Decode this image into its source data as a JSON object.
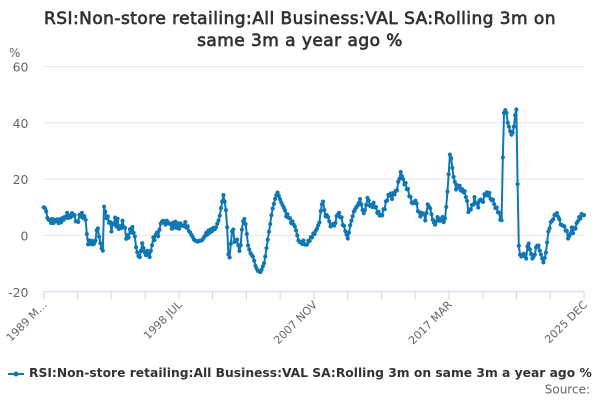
{
  "chart": {
    "title": "RSI:Non-store retailing:All Business:VAL SA:Rolling 3m on same 3m a year ago %",
    "title_lines": [
      "RSI:Non-store retailing:All Business:VAL SA:Rolling 3m on",
      "same 3m a year ago %"
    ],
    "y_axis": {
      "unit_label": "%",
      "tick_labels": [
        "60",
        "40",
        "20",
        "0",
        "-20"
      ],
      "min": -20,
      "max": 60
    },
    "x_axis": {
      "labels": [
        "1989 M…",
        "1998 JUL",
        "2007 NOV",
        "2017 MAR",
        "2025 DEC"
      ],
      "minor_tick_count": 17
    },
    "legend": {
      "label": "RSI:Non-store retailing:All Business:VAL SA:Rolling 3m on same 3m a year ago %"
    },
    "source_label": "Source:",
    "colors": {
      "series": "#1077b5",
      "grid": "#e6e6e6",
      "axis": "#ccd6eb",
      "title_text": "#333333",
      "tick_text": "#666666",
      "legend_text": "#333333",
      "source_text": "#666666",
      "background": "#ffffff"
    }
  },
  "chart_data": {
    "type": "line",
    "title": "RSI:Non-store retailing:All Business:VAL SA:Rolling 3m on same 3m a year ago %",
    "xlabel": "",
    "ylabel": "%",
    "ylim": [
      -20,
      60
    ],
    "y_ticks": [
      60,
      40,
      20,
      0,
      -20
    ],
    "x_tick_labels": [
      "1989 M…",
      "1998 JUL",
      "2007 NOV",
      "2017 MAR",
      "2025 DEC"
    ],
    "grid": "horizontal",
    "markers": true,
    "legend_position": "bottom",
    "series": [
      {
        "name": "RSI:Non-store retailing:All Business:VAL SA:Rolling 3m on same 3m a year ago %",
        "values": [
          10,
          9.6,
          8.5,
          6.2,
          5.5,
          5.6,
          4.4,
          5.8,
          4.4,
          5.5,
          5.1,
          5.7,
          4.4,
          5.7,
          4.6,
          6.1,
          5.5,
          6.6,
          6.2,
          8.0,
          6.2,
          7.0,
          6.5,
          7.9,
          7.1,
          7.2,
          5.0,
          5.0,
          4.8,
          7.3,
          6.7,
          8.0,
          6.2,
          6.8,
          5.5,
          0.5,
          -3.2,
          -1.8,
          -3.0,
          -1.9,
          -3.2,
          -2.9,
          -1.9,
          1.8,
          2.5,
          -0.5,
          -2.8,
          -4.6,
          -5.4,
          10.2,
          8.4,
          6.1,
          6.7,
          4.5,
          4.7,
          1.4,
          4.2,
          4.0,
          6.3,
          3.2,
          5.9,
          2.3,
          3.3,
          2.6,
          5.2,
          3.0,
          2.7,
          -1.2,
          -0.0,
          -0.8,
          2.2,
          1.0,
          3.0,
          0.9,
          -0.4,
          -4.2,
          -6.0,
          -7.3,
          -7.7,
          -5.5,
          -2.8,
          -4.5,
          -6.0,
          -7.0,
          -5.5,
          -6.6,
          -7.7,
          -5.5,
          -3.5,
          -0.7,
          -1.7,
          0.2,
          1.0,
          -0.3,
          2.0,
          4.2,
          4.8,
          5.2,
          4.4,
          3.8,
          5.2,
          4.6,
          4.2,
          3.9,
          2.4,
          4.5,
          2.8,
          4.9,
          2.7,
          4.2,
          2.4,
          4.3,
          3.5,
          3.5,
          3.3,
          4.7,
          2.7,
          3.2,
          1.5,
          1.0,
          0.2,
          -0.5,
          -1.4,
          -1.8,
          -2.0,
          -2.2,
          -2.0,
          -1.9,
          -1.8,
          -1.5,
          -0.8,
          -0.2,
          0.9,
          0.3,
          1.8,
          1.0,
          2.2,
          1.6,
          2.7,
          2.2,
          2.9,
          4.2,
          5.3,
          7.0,
          9.7,
          12.0,
          14.3,
          12.0,
          9.0,
          2.9,
          -6.7,
          -7.8,
          -3.0,
          1.4,
          2.1,
          -2.3,
          -2.0,
          -1.5,
          -3.5,
          -5.5,
          -3.5,
          2.0,
          5.0,
          5.8,
          4.0,
          0.5,
          -3.6,
          -5.0,
          -6.3,
          -7.0,
          -7.6,
          -9.0,
          -10.8,
          -11.8,
          -12.6,
          -12.8,
          -13.0,
          -12.2,
          -11.0,
          -9.9,
          -7.5,
          -4.5,
          -1.5,
          1.3,
          4.0,
          7.2,
          9.5,
          11.2,
          13.0,
          14.3,
          15.2,
          14.0,
          12.8,
          11.7,
          10.8,
          9.9,
          8.9,
          6.7,
          7.5,
          6.2,
          6.1,
          4.4,
          5.0,
          3.9,
          3.2,
          1.8,
          0.0,
          -1.8,
          -2.4,
          -2.4,
          -3.0,
          -1.8,
          -3.2,
          -3.3,
          -3.2,
          -1.9,
          -2.0,
          -0.6,
          -0.7,
          0.7,
          0.5,
          1.7,
          2.4,
          3.6,
          4.6,
          8.6,
          11.0,
          12.0,
          9.0,
          6.8,
          7.2,
          6.5,
          5.0,
          3.2,
          3.6,
          4.0,
          3.5,
          4.4,
          6.9,
          7.4,
          8.0,
          6.4,
          6.4,
          3.7,
          3.4,
          1.5,
          0.3,
          -1.1,
          1.0,
          3.6,
          5.2,
          6.8,
          8.5,
          9.3,
          10.0,
          10.6,
          11.5,
          12.9,
          11.0,
          9.0,
          7.9,
          9.0,
          10.8,
          13.3,
          12.4,
          10.5,
          10.8,
          10.1,
          11.6,
          10.0,
          10.0,
          8.0,
          8.4,
          7.0,
          7.3,
          7.1,
          9.3,
          9.3,
          12.1,
          12.4,
          14.4,
          14.1,
          14.9,
          12.9,
          15.0,
          14.5,
          15.8,
          16.0,
          19.0,
          20.1,
          22.5,
          21.0,
          20.0,
          18.1,
          18.6,
          16.4,
          16.5,
          13.9,
          13.7,
          11.6,
          11.4,
          11.8,
          12.3,
          11.3,
          8.6,
          8.3,
          6.7,
          8.0,
          7.8,
          7.5,
          5.3,
          8.0,
          11.0,
          10.2,
          9.6,
          7.5,
          5.6,
          4.6,
          3.8,
          5.0,
          6.5,
          5.8,
          5.2,
          5.8,
          6.5,
          4.7,
          6.0,
          10.1,
          15.5,
          21.7,
          28.7,
          27.4,
          24.0,
          20.8,
          19.0,
          16.3,
          17.8,
          17.0,
          17.6,
          16.0,
          16.4,
          15.3,
          15.7,
          13.6,
          12.2,
          8.3,
          9.2,
          9.2,
          10.8,
          10.9,
          13.6,
          11.4,
          11.4,
          9.9,
          12.4,
          12.7,
          12.2,
          11.9,
          14.6,
          14.2,
          15.3,
          14.2,
          15.1,
          13.0,
          12.5,
          12.7,
          11.1,
          9.7,
          9.9,
          8.2,
          8.1,
          5.5,
          5.4,
          27.7,
          43.5,
          44.5,
          43.5,
          40.0,
          38.6,
          37.0,
          35.8,
          36.5,
          38.6,
          42.7,
          44.7,
          18.2,
          -3.7,
          -6.8,
          -7.5,
          -7.0,
          -6.5,
          -7.4,
          -8.2,
          -3.9,
          -2.9,
          -5.0,
          -6.6,
          -8.2,
          -7.5,
          -6.8,
          -4.3,
          -3.6,
          -3.6,
          -5.4,
          -6.8,
          -8.2,
          -9.6,
          -8.0,
          -6.1,
          -2.5,
          1.4,
          2.5,
          4.7,
          5.2,
          5.7,
          7.2,
          7.5,
          7.9,
          6.6,
          5.7,
          3.8,
          3.7,
          3.4,
          3.2,
          1.7,
          1.6,
          -1.1,
          -0.2,
          0.7,
          2.8,
          0.8,
          2.7,
          2.4,
          4.4,
          5.0,
          6.5,
          6.0,
          7.6,
          7.2,
          7.2
        ]
      }
    ]
  }
}
